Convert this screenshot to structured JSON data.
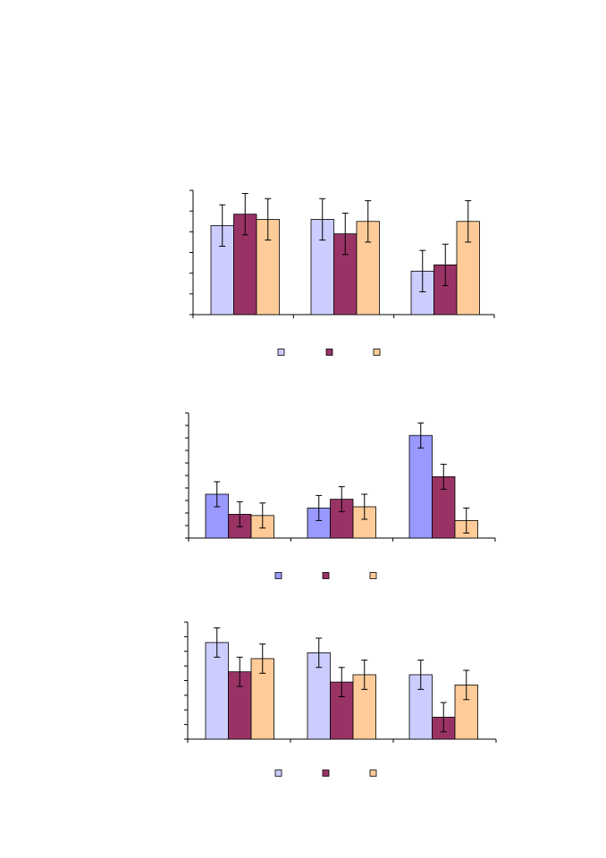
{
  "chart_data": [
    {
      "type": "bar",
      "categories": [
        "",
        "",
        ""
      ],
      "ylim": [
        0,
        6
      ],
      "grid": false,
      "error_bars": true,
      "legend_placement": "bottom",
      "colors": [
        "#ccccff",
        "#993366",
        "#ffcc99"
      ],
      "series": [
        {
          "values": [
            4.3,
            4.6,
            2.1
          ],
          "errors": [
            1.0,
            1.0,
            1.0
          ]
        },
        {
          "values": [
            4.85,
            3.9,
            2.4
          ],
          "errors": [
            1.0,
            1.0,
            1.0
          ]
        },
        {
          "values": [
            4.6,
            4.5,
            4.5
          ],
          "errors": [
            1.0,
            1.0,
            1.0
          ]
        }
      ]
    },
    {
      "type": "bar",
      "categories": [
        "",
        "",
        ""
      ],
      "ylim": [
        0,
        10
      ],
      "grid": false,
      "error_bars": true,
      "legend_placement": "bottom",
      "colors": [
        "#9999ff",
        "#993366",
        "#ffcc99"
      ],
      "series": [
        {
          "values": [
            3.5,
            2.4,
            8.2
          ],
          "errors": [
            1.0,
            1.0,
            1.0
          ]
        },
        {
          "values": [
            1.9,
            3.1,
            4.9
          ],
          "errors": [
            1.0,
            1.0,
            1.0
          ]
        },
        {
          "values": [
            1.8,
            2.5,
            1.4
          ],
          "errors": [
            1.0,
            1.0,
            1.0
          ]
        }
      ]
    },
    {
      "type": "bar",
      "categories": [
        "",
        "",
        ""
      ],
      "ylim": [
        0,
        8
      ],
      "grid": false,
      "error_bars": true,
      "legend_placement": "bottom",
      "colors": [
        "#ccccff",
        "#993366",
        "#ffcc99"
      ],
      "series": [
        {
          "values": [
            6.6,
            5.9,
            4.4
          ],
          "errors": [
            1.0,
            1.0,
            1.0
          ]
        },
        {
          "values": [
            4.6,
            3.9,
            1.5
          ],
          "errors": [
            1.0,
            1.0,
            1.0
          ]
        },
        {
          "values": [
            5.5,
            4.4,
            3.7
          ],
          "errors": [
            1.0,
            1.0,
            1.0
          ]
        }
      ]
    }
  ]
}
